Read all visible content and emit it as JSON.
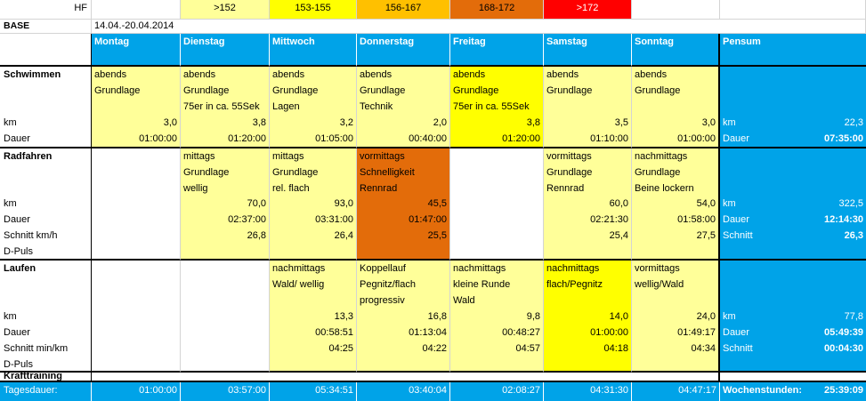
{
  "hf": {
    "label": "HF",
    "zones": [
      {
        "label": ">152",
        "color": "#ffff99"
      },
      {
        "label": "153-155",
        "color": "#ffff00"
      },
      {
        "label": "156-167",
        "color": "#ffc000"
      },
      {
        "label": "168-172",
        "color": "#e36c0a"
      },
      {
        "label": ">172",
        "color": "#ff0000"
      }
    ]
  },
  "base": {
    "label": "BASE",
    "range": "14.04.-20.04.2014"
  },
  "days": [
    "Montag",
    "Dienstag",
    "Mittwoch",
    "Donnerstag",
    "Freitag",
    "Samstag",
    "Sonntag"
  ],
  "pensum_label": "Pensum",
  "colors": {
    "light": "#ffff99",
    "yellow": "#ffff00",
    "orange": "#e36c0a",
    "blue": "#00a3e8"
  },
  "swim": {
    "title": "Schwimmen",
    "row_labels": [
      "km",
      "Dauer"
    ],
    "days": [
      {
        "lines": [
          "abends",
          "Grundlage"
        ],
        "km": "3,0",
        "dauer": "01:00:00"
      },
      {
        "lines": [
          "abends",
          "Grundlage",
          "75er in ca. 55Sek"
        ],
        "km": "3,8",
        "dauer": "01:20:00"
      },
      {
        "lines": [
          "abends",
          "Grundlage",
          "Lagen"
        ],
        "km": "3,2",
        "dauer": "01:05:00"
      },
      {
        "lines": [
          "abends",
          "Grundlage",
          "Technik"
        ],
        "km": "2,0",
        "dauer": "00:40:00"
      },
      {
        "lines": [
          "abends",
          "Grundlage",
          "75er in ca. 55Sek"
        ],
        "km": "3,8",
        "dauer": "01:20:00"
      },
      {
        "lines": [
          "abends",
          "Grundlage"
        ],
        "km": "3,5",
        "dauer": "01:10:00"
      },
      {
        "lines": [
          "abends",
          "Grundlage"
        ],
        "km": "3,0",
        "dauer": "01:00:00"
      }
    ],
    "pensum": {
      "km_label": "km",
      "km": "22,3",
      "dauer_label": "Dauer",
      "dauer": "07:35:00"
    }
  },
  "bike": {
    "title": "Radfahren",
    "row_labels": [
      "km",
      "Dauer",
      "Schnitt km/h",
      "D-Puls"
    ],
    "days": [
      {
        "lines": [],
        "km": "",
        "dauer": "",
        "schnitt": ""
      },
      {
        "lines": [
          "mittags",
          "Grundlage",
          "wellig"
        ],
        "km": "70,0",
        "dauer": "02:37:00",
        "schnitt": "26,8"
      },
      {
        "lines": [
          "mittags",
          "Grundlage",
          "rel. flach"
        ],
        "km": "93,0",
        "dauer": "03:31:00",
        "schnitt": "26,4"
      },
      {
        "lines": [
          "vormittags",
          "Schnelligkeit",
          "Rennrad"
        ],
        "km": "45,5",
        "dauer": "01:47:00",
        "schnitt": "25,5"
      },
      {
        "lines": [],
        "km": "",
        "dauer": "",
        "schnitt": ""
      },
      {
        "lines": [
          "vormittags",
          "Grundlage",
          "Rennrad"
        ],
        "km": "60,0",
        "dauer": "02:21:30",
        "schnitt": "25,4"
      },
      {
        "lines": [
          "nachmittags",
          "Grundlage",
          "Beine lockern"
        ],
        "km": "54,0",
        "dauer": "01:58:00",
        "schnitt": "27,5"
      }
    ],
    "pensum": {
      "km_label": "km",
      "km": "322,5",
      "dauer_label": "Dauer",
      "dauer": "12:14:30",
      "schnitt_label": "Schnitt",
      "schnitt": "26,3"
    }
  },
  "run": {
    "title": "Laufen",
    "row_labels": [
      "km",
      "Dauer",
      "Schnitt min/km",
      "D-Puls"
    ],
    "days": [
      {
        "lines": [],
        "km": "",
        "dauer": "",
        "schnitt": ""
      },
      {
        "lines": [],
        "km": "",
        "dauer": "",
        "schnitt": ""
      },
      {
        "lines": [
          "nachmittags",
          "Wald/ wellig"
        ],
        "km": "13,3",
        "dauer": "00:58:51",
        "schnitt": "04:25"
      },
      {
        "lines": [
          "Koppellauf",
          "Pegnitz/flach",
          "progressiv"
        ],
        "km": "16,8",
        "dauer": "01:13:04",
        "schnitt": "04:22"
      },
      {
        "lines": [
          "nachmittags",
          "kleine Runde",
          "Wald"
        ],
        "km": "9,8",
        "dauer": "00:48:27",
        "schnitt": "04:57"
      },
      {
        "lines": [
          "nachmittags",
          "flach/Pegnitz"
        ],
        "km": "14,0",
        "dauer": "01:00:00",
        "schnitt": "04:18"
      },
      {
        "lines": [
          "vormittags",
          "wellig/Wald"
        ],
        "km": "24,0",
        "dauer": "01:49:17",
        "schnitt": "04:34"
      }
    ],
    "pensum": {
      "km_label": "km",
      "km": "77,8",
      "dauer_label": "Dauer",
      "dauer": "05:49:39",
      "schnitt_label": "Schnitt",
      "schnitt": "00:04:30"
    }
  },
  "kraft": {
    "title": "Krafttraining"
  },
  "daily": {
    "label": "Tagesdauer:",
    "values": [
      "01:00:00",
      "03:57:00",
      "05:34:51",
      "03:40:04",
      "02:08:27",
      "04:31:30",
      "04:47:17"
    ],
    "week_label": "Wochenstunden:",
    "week_total": "25:39:09"
  }
}
